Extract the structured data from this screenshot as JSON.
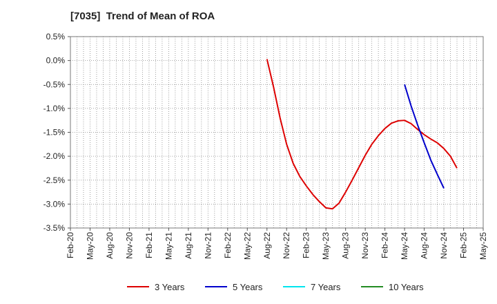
{
  "chart_data": {
    "type": "line",
    "title": "[7035]  Trend of Mean of ROA",
    "xlabel": "",
    "ylabel": "",
    "x_ticks": [
      "Feb-20",
      "May-20",
      "Aug-20",
      "Nov-20",
      "Feb-21",
      "May-21",
      "Aug-21",
      "Nov-21",
      "Feb-22",
      "May-22",
      "Aug-22",
      "Nov-22",
      "Feb-23",
      "May-23",
      "Aug-23",
      "Nov-23",
      "Feb-24",
      "May-24",
      "Aug-24",
      "Nov-24",
      "Feb-25",
      "May-25"
    ],
    "y_ticks": [
      "0.5%",
      "0.0%",
      "-0.5%",
      "-1.0%",
      "-1.5%",
      "-2.0%",
      "-2.5%",
      "-3.0%",
      "-3.5%"
    ],
    "ylim": [
      -3.5,
      0.5
    ],
    "y_unit": "%",
    "grid": true,
    "legend_position": "bottom",
    "series": [
      {
        "name": "3 Years",
        "color": "#dd0000",
        "points": [
          [
            "Aug-22",
            0.03
          ],
          [
            "Sep-22",
            -0.55
          ],
          [
            "Oct-22",
            -1.2
          ],
          [
            "Nov-22",
            -1.75
          ],
          [
            "Dec-22",
            -2.15
          ],
          [
            "Jan-23",
            -2.42
          ],
          [
            "Feb-23",
            -2.62
          ],
          [
            "Mar-23",
            -2.8
          ],
          [
            "Apr-23",
            -2.95
          ],
          [
            "May-23",
            -3.08
          ],
          [
            "Jun-23",
            -3.1
          ],
          [
            "Jul-23",
            -2.98
          ],
          [
            "Aug-23",
            -2.75
          ],
          [
            "Sep-23",
            -2.5
          ],
          [
            "Oct-23",
            -2.24
          ],
          [
            "Nov-23",
            -1.98
          ],
          [
            "Dec-23",
            -1.75
          ],
          [
            "Jan-24",
            -1.57
          ],
          [
            "Feb-24",
            -1.42
          ],
          [
            "Mar-24",
            -1.31
          ],
          [
            "Apr-24",
            -1.26
          ],
          [
            "May-24",
            -1.25
          ],
          [
            "Jun-24",
            -1.32
          ],
          [
            "Jul-24",
            -1.44
          ],
          [
            "Aug-24",
            -1.55
          ],
          [
            "Sep-24",
            -1.64
          ],
          [
            "Oct-24",
            -1.72
          ],
          [
            "Nov-24",
            -1.84
          ],
          [
            "Dec-24",
            -2.0
          ],
          [
            "Jan-25",
            -2.25
          ]
        ]
      },
      {
        "name": "5 Years",
        "color": "#0000cc",
        "points": [
          [
            "May-24",
            -0.5
          ],
          [
            "Jun-24",
            -0.95
          ],
          [
            "Jul-24",
            -1.35
          ],
          [
            "Aug-24",
            -1.72
          ],
          [
            "Sep-24",
            -2.08
          ],
          [
            "Oct-24",
            -2.38
          ],
          [
            "Nov-24",
            -2.67
          ]
        ]
      },
      {
        "name": "7 Years",
        "color": "#00e5ee",
        "points": []
      },
      {
        "name": "10 Years",
        "color": "#228b22",
        "points": []
      }
    ]
  }
}
